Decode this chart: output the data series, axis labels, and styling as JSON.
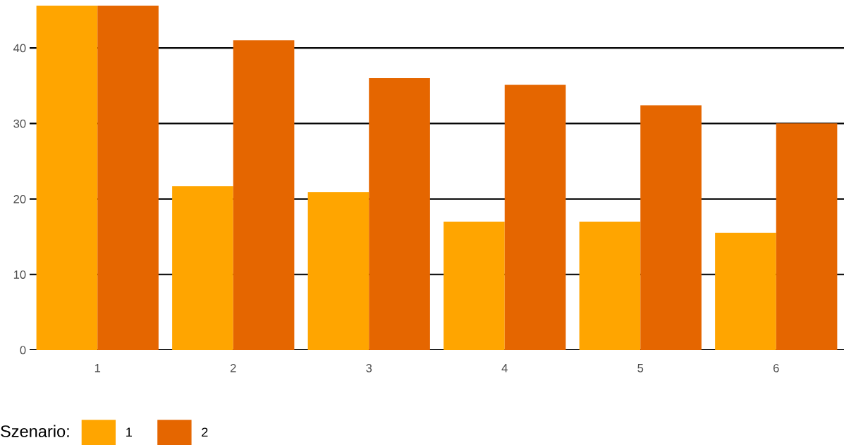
{
  "chart_data": {
    "type": "bar",
    "categories": [
      "1",
      "2",
      "3",
      "4",
      "5",
      "6"
    ],
    "series": [
      {
        "name": "1",
        "color": "#ffa500",
        "values": [
          45.6,
          21.7,
          20.9,
          17.0,
          17.0,
          15.5
        ]
      },
      {
        "name": "2",
        "color": "#e56600",
        "values": [
          45.6,
          41.0,
          36.0,
          35.1,
          32.4,
          30.0
        ]
      }
    ],
    "legend_title": "Szenario:",
    "legend": "bottom",
    "grid": "y",
    "ylim": [
      0,
      45.6
    ],
    "yticks": [
      0,
      10,
      20,
      30,
      40
    ]
  }
}
